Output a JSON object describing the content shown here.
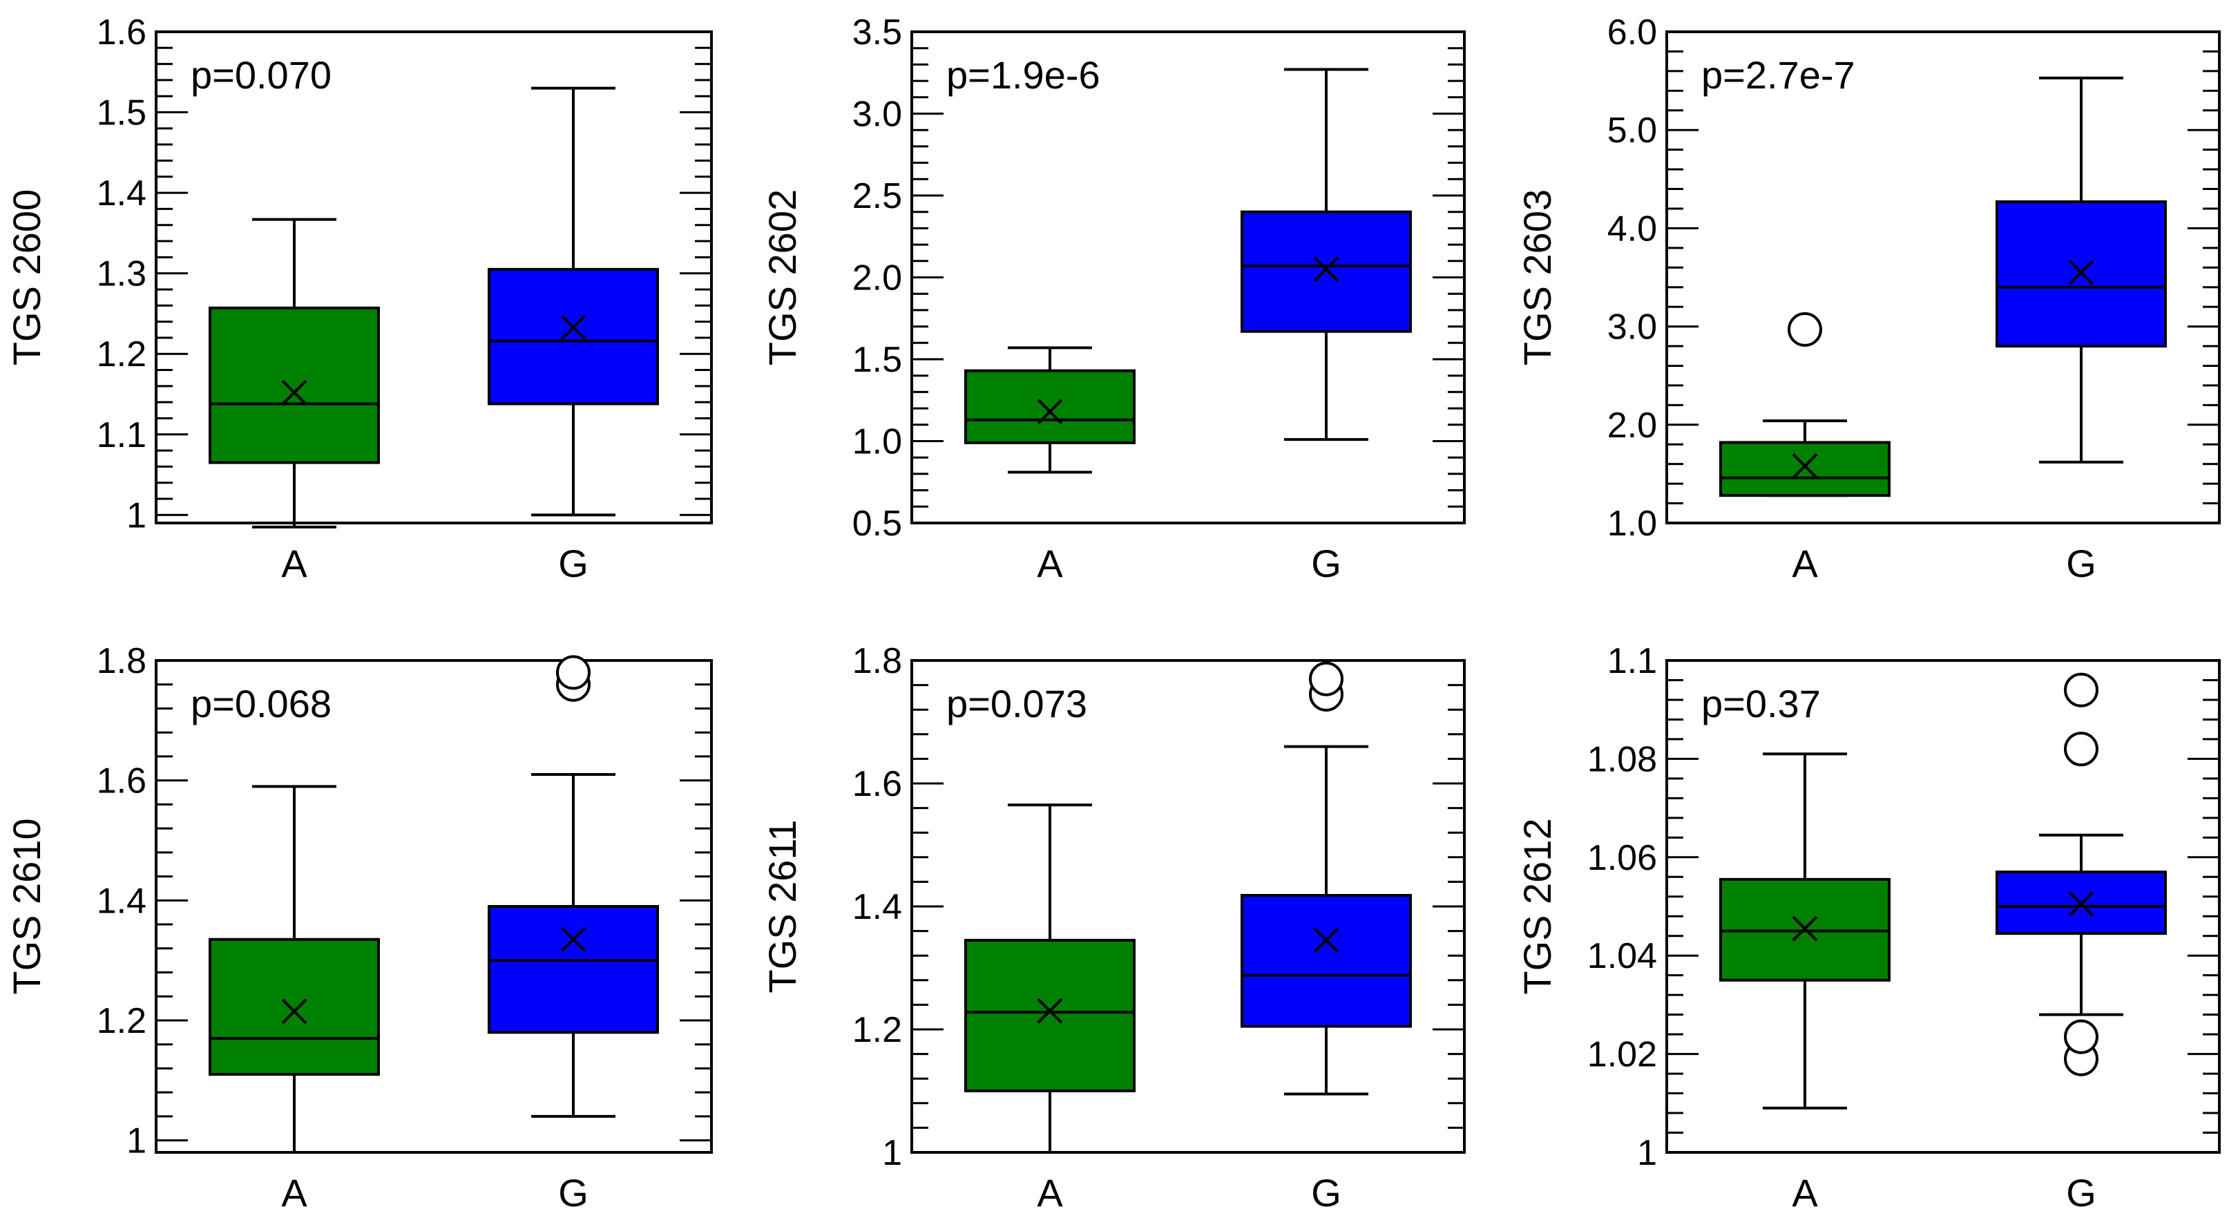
{
  "figure": {
    "colors": {
      "A": "#008000",
      "G": "#0000ff",
      "stroke": "#000000"
    }
  },
  "chart_data": [
    {
      "type": "box",
      "ylabel": "TGS 2600",
      "annotation": "p=0.070",
      "ylim": [
        0.99,
        1.6
      ],
      "ticks": [
        1,
        1.1,
        1.2,
        1.3,
        1.4,
        1.5,
        1.6
      ],
      "tick_labels": [
        "1",
        "1.1",
        "1.2",
        "1.3",
        "1.4",
        "1.5",
        "1.6"
      ],
      "categories": [
        "A",
        "G"
      ],
      "boxes": [
        {
          "group": "A",
          "whisker_low": 0.985,
          "q1": 1.065,
          "median": 1.138,
          "q3": 1.257,
          "whisker_high": 1.367,
          "mean": 1.152,
          "outliers": []
        },
        {
          "group": "G",
          "whisker_low": 1.0,
          "q1": 1.138,
          "median": 1.216,
          "q3": 1.305,
          "whisker_high": 1.53,
          "mean": 1.233,
          "outliers": []
        }
      ]
    },
    {
      "type": "box",
      "ylabel": "TGS 2602",
      "annotation": "p=1.9e-6",
      "ylim": [
        0.5,
        3.5
      ],
      "ticks": [
        0.5,
        1.0,
        1.5,
        2.0,
        2.5,
        3.0,
        3.5
      ],
      "tick_labels": [
        "0.5",
        "1.0",
        "1.5",
        "2.0",
        "2.5",
        "3.0",
        "3.5"
      ],
      "categories": [
        "A",
        "G"
      ],
      "boxes": [
        {
          "group": "A",
          "whisker_low": 0.81,
          "q1": 0.99,
          "median": 1.13,
          "q3": 1.43,
          "whisker_high": 1.57,
          "mean": 1.18,
          "outliers": []
        },
        {
          "group": "G",
          "whisker_low": 1.01,
          "q1": 1.67,
          "median": 2.07,
          "q3": 2.4,
          "whisker_high": 3.27,
          "mean": 2.05,
          "outliers": []
        }
      ]
    },
    {
      "type": "box",
      "ylabel": "TGS 2603",
      "annotation": "p=2.7e-7",
      "ylim": [
        1.0,
        6.0
      ],
      "ticks": [
        1,
        2,
        3,
        4,
        5,
        6
      ],
      "tick_labels": [
        "1.0",
        "2.0",
        "3.0",
        "4.0",
        "5.0",
        "6.0"
      ],
      "categories": [
        "A",
        "G"
      ],
      "boxes": [
        {
          "group": "A",
          "whisker_low": 1.28,
          "q1": 1.28,
          "median": 1.46,
          "q3": 1.82,
          "whisker_high": 2.04,
          "mean": 1.58,
          "outliers": [
            2.97
          ]
        },
        {
          "group": "G",
          "whisker_low": 1.62,
          "q1": 2.8,
          "median": 3.4,
          "q3": 4.27,
          "whisker_high": 5.53,
          "mean": 3.55,
          "outliers": []
        }
      ]
    },
    {
      "type": "box",
      "ylabel": "TGS 2610",
      "annotation": "p=0.068",
      "ylim": [
        0.98,
        1.8
      ],
      "ticks": [
        1,
        1.2,
        1.4,
        1.6,
        1.8
      ],
      "tick_labels": [
        "1",
        "1.2",
        "1.4",
        "1.6",
        "1.8"
      ],
      "categories": [
        "A",
        "G"
      ],
      "boxes": [
        {
          "group": "A",
          "whisker_low": 0.98,
          "q1": 1.11,
          "median": 1.17,
          "q3": 1.335,
          "whisker_high": 1.59,
          "mean": 1.215,
          "outliers": []
        },
        {
          "group": "G",
          "whisker_low": 1.04,
          "q1": 1.18,
          "median": 1.3,
          "q3": 1.39,
          "whisker_high": 1.61,
          "mean": 1.335,
          "outliers": [
            1.76,
            1.78
          ]
        }
      ]
    },
    {
      "type": "box",
      "ylabel": "TGS 2611",
      "annotation": "p=0.073",
      "ylim": [
        1.0,
        1.8
      ],
      "ticks": [
        1,
        1.2,
        1.4,
        1.6,
        1.8
      ],
      "tick_labels": [
        "1",
        "1.2",
        "1.4",
        "1.6",
        "1.8"
      ],
      "categories": [
        "A",
        "G"
      ],
      "boxes": [
        {
          "group": "A",
          "whisker_low": 1.0,
          "q1": 1.1,
          "median": 1.228,
          "q3": 1.345,
          "whisker_high": 1.565,
          "mean": 1.23,
          "outliers": []
        },
        {
          "group": "G",
          "whisker_low": 1.095,
          "q1": 1.205,
          "median": 1.288,
          "q3": 1.418,
          "whisker_high": 1.66,
          "mean": 1.345,
          "outliers": [
            1.745,
            1.77
          ]
        }
      ]
    },
    {
      "type": "box",
      "ylabel": "TGS 2612",
      "annotation": "p=0.37",
      "ylim": [
        1.0,
        1.1
      ],
      "ticks": [
        1,
        1.02,
        1.04,
        1.06,
        1.08,
        1.1
      ],
      "tick_labels": [
        "1",
        "1.02",
        "1.04",
        "1.06",
        "1.08",
        "1.1"
      ],
      "categories": [
        "A",
        "G"
      ],
      "boxes": [
        {
          "group": "A",
          "whisker_low": 1.009,
          "q1": 1.035,
          "median": 1.045,
          "q3": 1.0555,
          "whisker_high": 1.081,
          "mean": 1.0455,
          "outliers": []
        },
        {
          "group": "G",
          "whisker_low": 1.028,
          "q1": 1.0445,
          "median": 1.05,
          "q3": 1.057,
          "whisker_high": 1.0645,
          "mean": 1.0505,
          "outliers": [
            1.019,
            1.0235,
            1.082,
            1.094
          ]
        }
      ]
    }
  ]
}
